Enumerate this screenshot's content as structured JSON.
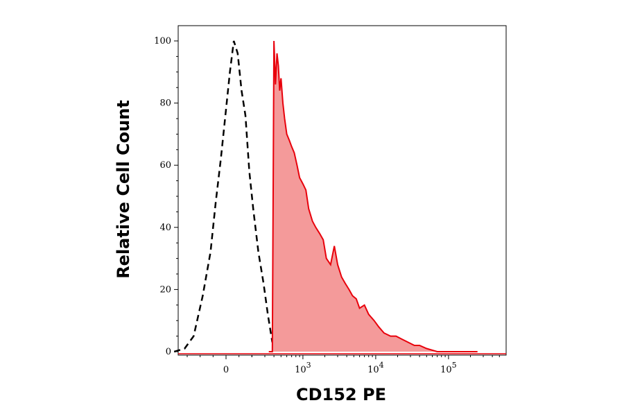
{
  "chart_data": {
    "type": "area",
    "title": "",
    "xlabel": "CD152 PE",
    "ylabel": "Relative Cell Count",
    "x_scale": "biexponential",
    "xlim": [
      -600,
      250000
    ],
    "ylim": [
      0,
      100
    ],
    "grid": false,
    "legend": "none",
    "y_ticks": [
      {
        "value": 0,
        "label": "0"
      },
      {
        "value": 20,
        "label": "20"
      },
      {
        "value": 40,
        "label": "40"
      },
      {
        "value": 60,
        "label": "60"
      },
      {
        "value": 80,
        "label": "80"
      },
      {
        "value": 100,
        "label": "100"
      }
    ],
    "x_ticks": [
      {
        "value": 0,
        "label": "0",
        "sup": ""
      },
      {
        "value": 1000,
        "label": "10",
        "sup": "3"
      },
      {
        "value": 10000,
        "label": "10",
        "sup": "4"
      },
      {
        "value": 100000,
        "label": "10",
        "sup": "5"
      }
    ],
    "series": [
      {
        "style": "dashed-line",
        "color": "#000000",
        "x": [
          -400,
          -320,
          -250,
          -180,
          -120,
          -80,
          -40,
          0,
          30,
          60,
          90,
          120,
          150,
          180,
          210,
          250,
          290,
          330,
          380
        ],
        "y": [
          0,
          1,
          5,
          18,
          32,
          48,
          62,
          78,
          90,
          100,
          96,
          84,
          76,
          58,
          46,
          32,
          22,
          12,
          3
        ]
      },
      {
        "style": "filled-line",
        "color": "#e8000b",
        "fill": "#f49a9a",
        "x": [
          340,
          380,
          400,
          420,
          440,
          460,
          480,
          500,
          530,
          560,
          600,
          650,
          700,
          760,
          830,
          900,
          1000,
          1100,
          1200,
          1350,
          1500,
          1700,
          1900,
          2100,
          2400,
          2700,
          3000,
          3400,
          3800,
          4300,
          4800,
          5400,
          6000,
          7000,
          8000,
          9500,
          11000,
          13000,
          16000,
          19000,
          23000,
          28000,
          34000,
          40000,
          50000,
          70000,
          100000,
          150000,
          250000
        ],
        "y": [
          0,
          0,
          100,
          86,
          96,
          92,
          84,
          88,
          80,
          75,
          70,
          68,
          66,
          64,
          60,
          56,
          54,
          52,
          46,
          42,
          40,
          38,
          36,
          30,
          28,
          34,
          28,
          24,
          22,
          20,
          18,
          17,
          14,
          15,
          12,
          10,
          8,
          6,
          5,
          5,
          4,
          3,
          2,
          2,
          1,
          0,
          0,
          0,
          0
        ]
      }
    ]
  }
}
